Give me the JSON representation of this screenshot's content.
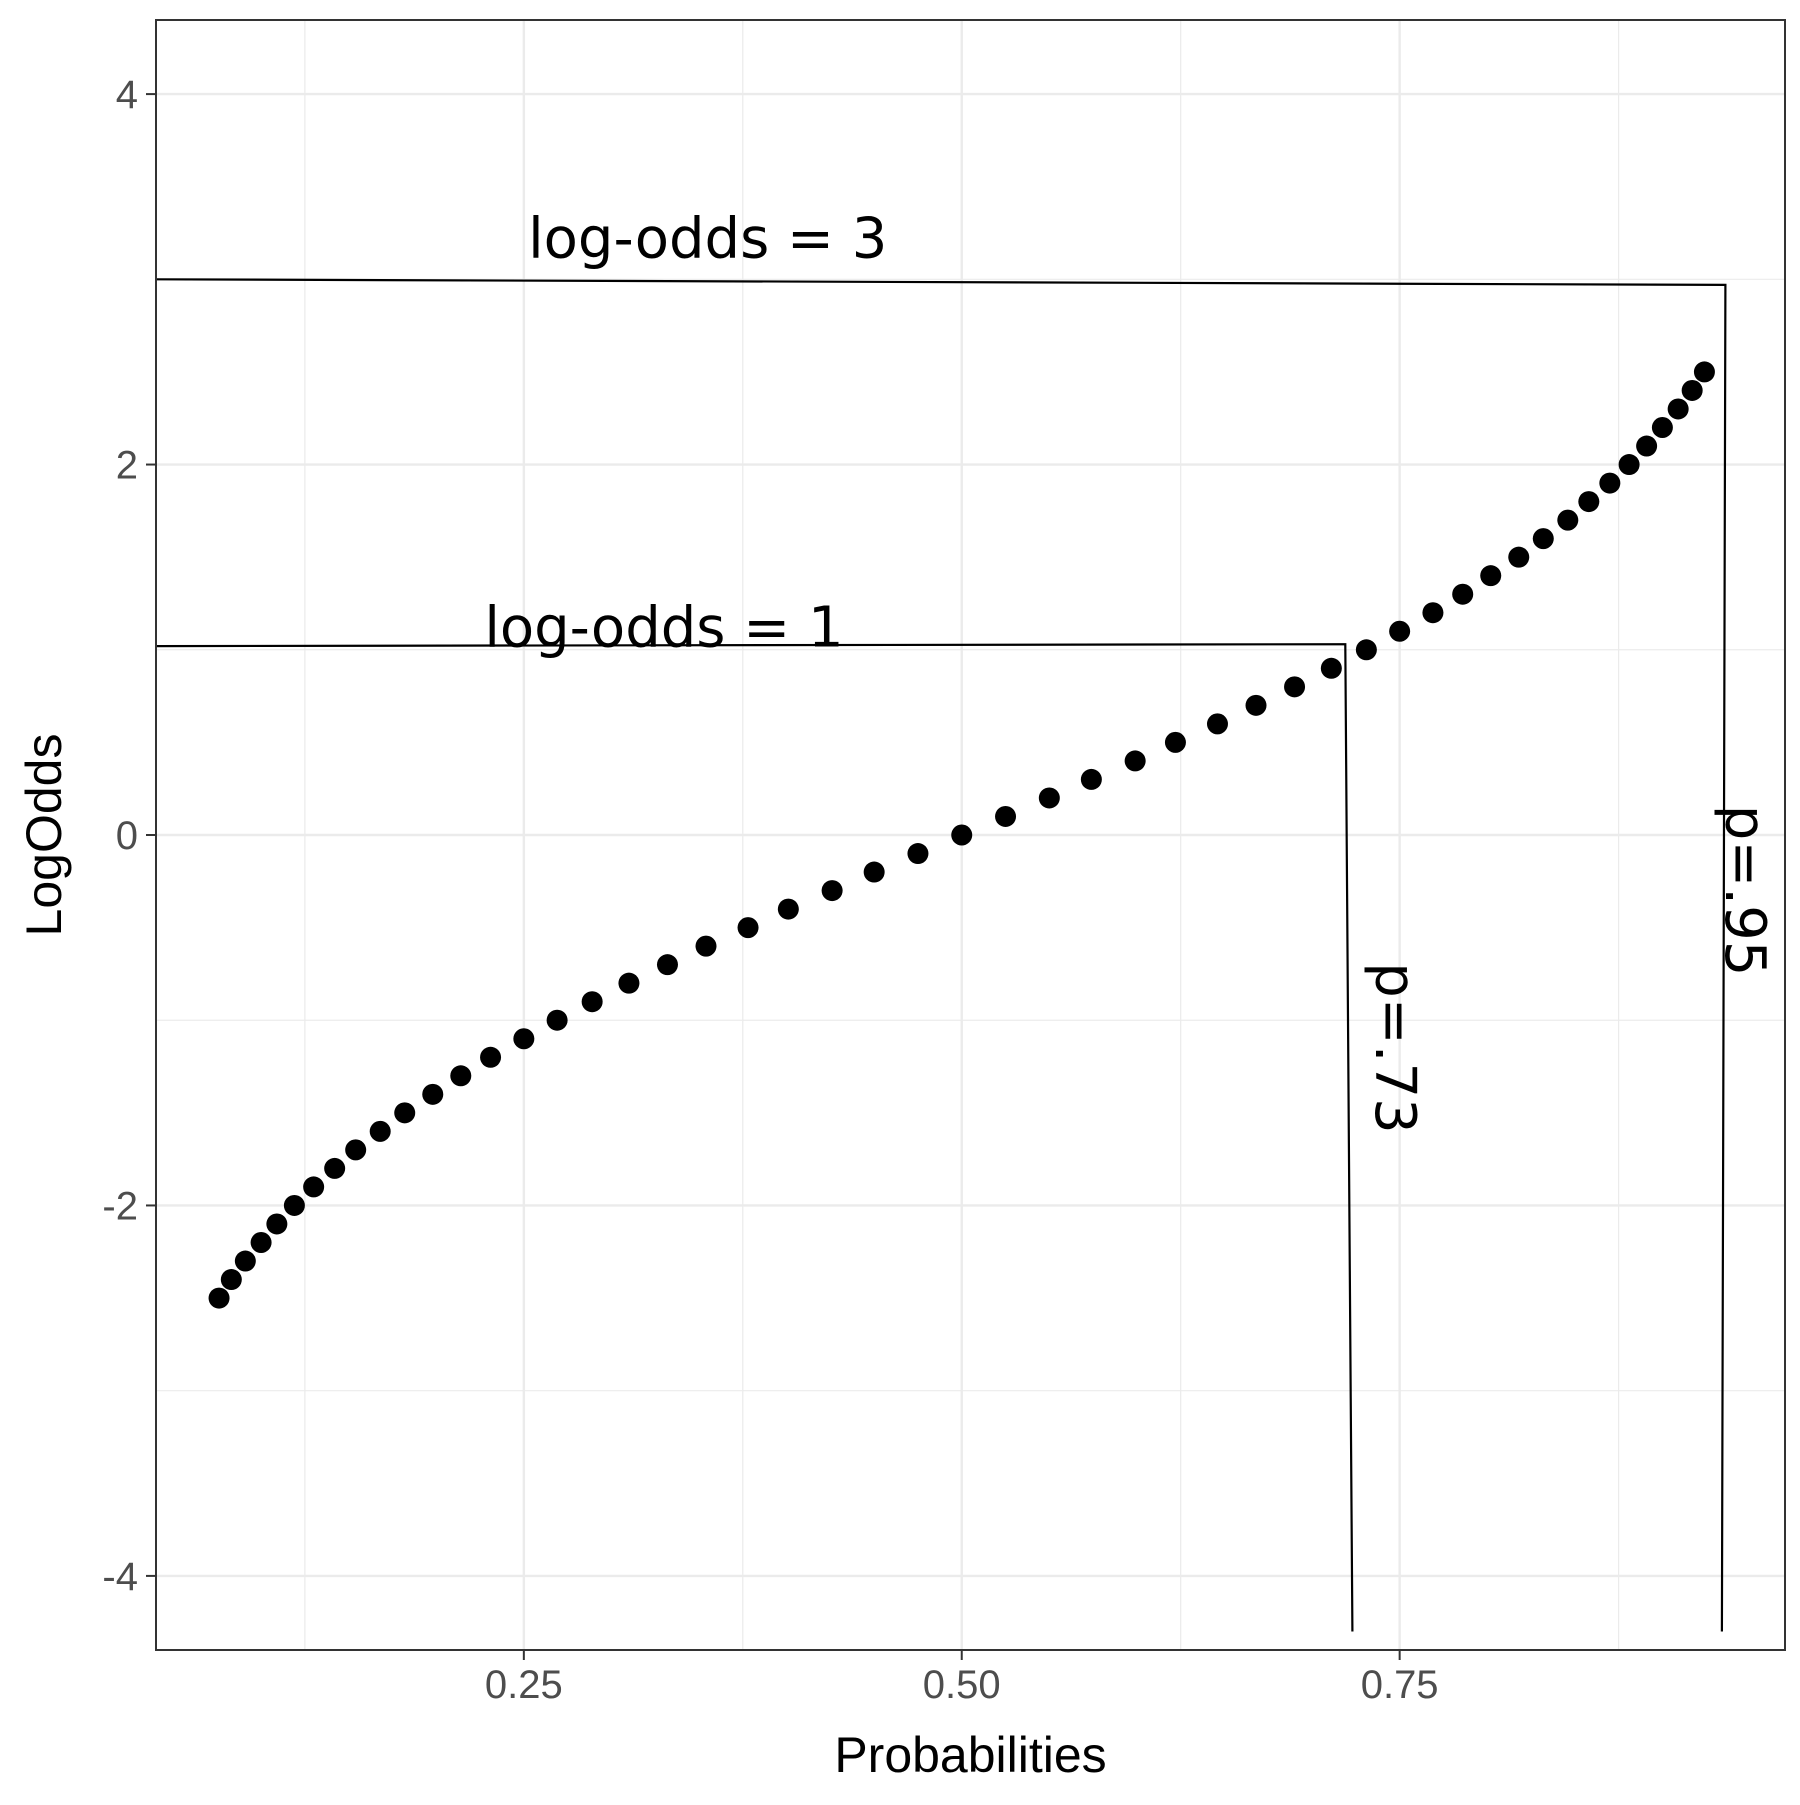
{
  "chart_data": {
    "type": "scatter",
    "xlabel": "Probabilities",
    "ylabel": "LogOdds",
    "xlim": [
      0.04,
      0.97
    ],
    "ylim": [
      -4.4,
      4.4
    ],
    "x_ticks": [
      0.25,
      0.5,
      0.75
    ],
    "x_tick_labels": [
      "0.25",
      "0.50",
      "0.75"
    ],
    "y_ticks": [
      -4,
      -2,
      0,
      2,
      4
    ],
    "y_tick_labels": [
      "-4",
      "-2",
      "0",
      "2",
      "4"
    ],
    "grid": true,
    "series": [
      {
        "marker": "circle",
        "color": "#000000",
        "points": [
          [
            0.076,
            -2.5
          ],
          [
            0.083,
            -2.4
          ],
          [
            0.091,
            -2.3
          ],
          [
            0.1,
            -2.2
          ],
          [
            0.109,
            -2.1
          ],
          [
            0.119,
            -2.0
          ],
          [
            0.13,
            -1.9
          ],
          [
            0.142,
            -1.8
          ],
          [
            0.154,
            -1.7
          ],
          [
            0.168,
            -1.6
          ],
          [
            0.182,
            -1.5
          ],
          [
            0.198,
            -1.4
          ],
          [
            0.214,
            -1.3
          ],
          [
            0.231,
            -1.2
          ],
          [
            0.25,
            -1.1
          ],
          [
            0.269,
            -1.0
          ],
          [
            0.289,
            -0.9
          ],
          [
            0.31,
            -0.8
          ],
          [
            0.332,
            -0.7
          ],
          [
            0.354,
            -0.6
          ],
          [
            0.378,
            -0.5
          ],
          [
            0.401,
            -0.4
          ],
          [
            0.426,
            -0.3
          ],
          [
            0.45,
            -0.2
          ],
          [
            0.475,
            -0.1
          ],
          [
            0.5,
            0.0
          ],
          [
            0.525,
            0.1
          ],
          [
            0.55,
            0.2
          ],
          [
            0.574,
            0.3
          ],
          [
            0.599,
            0.4
          ],
          [
            0.622,
            0.5
          ],
          [
            0.646,
            0.6
          ],
          [
            0.668,
            0.7
          ],
          [
            0.69,
            0.8
          ],
          [
            0.711,
            0.9
          ],
          [
            0.731,
            1.0
          ],
          [
            0.75,
            1.1
          ],
          [
            0.769,
            1.2
          ],
          [
            0.786,
            1.3
          ],
          [
            0.802,
            1.4
          ],
          [
            0.818,
            1.5
          ],
          [
            0.832,
            1.6
          ],
          [
            0.846,
            1.7
          ],
          [
            0.858,
            1.8
          ],
          [
            0.87,
            1.9
          ],
          [
            0.881,
            2.0
          ],
          [
            0.891,
            2.1
          ],
          [
            0.9,
            2.2
          ],
          [
            0.909,
            2.3
          ],
          [
            0.917,
            2.4
          ],
          [
            0.924,
            2.5
          ]
        ]
      }
    ],
    "reference_lines": [
      {
        "points": [
          [
            0.04,
            3.0
          ],
          [
            0.936,
            2.97
          ],
          [
            0.934,
            -4.3
          ]
        ]
      },
      {
        "points": [
          [
            0.04,
            1.02
          ],
          [
            0.719,
            1.03
          ],
          [
            0.723,
            -4.3
          ]
        ]
      }
    ],
    "annotations": [
      {
        "text": "log-odds = 3",
        "x": 0.355,
        "y": 3.2,
        "rotate": 0
      },
      {
        "text": "log-odds = 1",
        "x": 0.33,
        "y": 1.1,
        "rotate": 0
      },
      {
        "text": "p=.73",
        "x": 0.745,
        "y": -1.15,
        "rotate": 90
      },
      {
        "text": "p=.95",
        "x": 0.945,
        "y": -0.3,
        "rotate": 90
      }
    ]
  }
}
